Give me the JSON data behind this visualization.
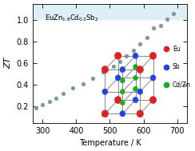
{
  "xlabel": "Temperature / K",
  "ylabel": "ZT",
  "xlim": [
    270,
    730
  ],
  "ylim": [
    0.05,
    1.15
  ],
  "yticks": [
    0.2,
    0.4,
    0.6,
    0.8,
    1.0
  ],
  "xticks": [
    300,
    400,
    500,
    600,
    700
  ],
  "bg_color_top": "#ddeef5",
  "bg_color_bottom": "#ffffff",
  "data_x": [
    280,
    300,
    320,
    340,
    360,
    390,
    420,
    450,
    480,
    510,
    530,
    550,
    570,
    590,
    610,
    630,
    650,
    670,
    690
  ],
  "data_y": [
    0.19,
    0.22,
    0.25,
    0.28,
    0.32,
    0.37,
    0.41,
    0.46,
    0.52,
    0.57,
    0.62,
    0.67,
    0.72,
    0.78,
    0.84,
    0.93,
    0.95,
    1.01,
    1.06
  ],
  "marker_color": "#7a9a9a",
  "marker_size": 3.5,
  "eu_color": "#dd2222",
  "sb_color": "#2244dd",
  "cdzn_color": "#22aa22",
  "line_color": "#888888",
  "legend_labels": [
    "Eu",
    "Sb",
    "Cd/Zn"
  ],
  "legend_colors": [
    "#dd2222",
    "#2244dd",
    "#22aa22"
  ],
  "formula": "EuZn$_{1.8}$Cd$_{0.2}$Sb$_2$"
}
